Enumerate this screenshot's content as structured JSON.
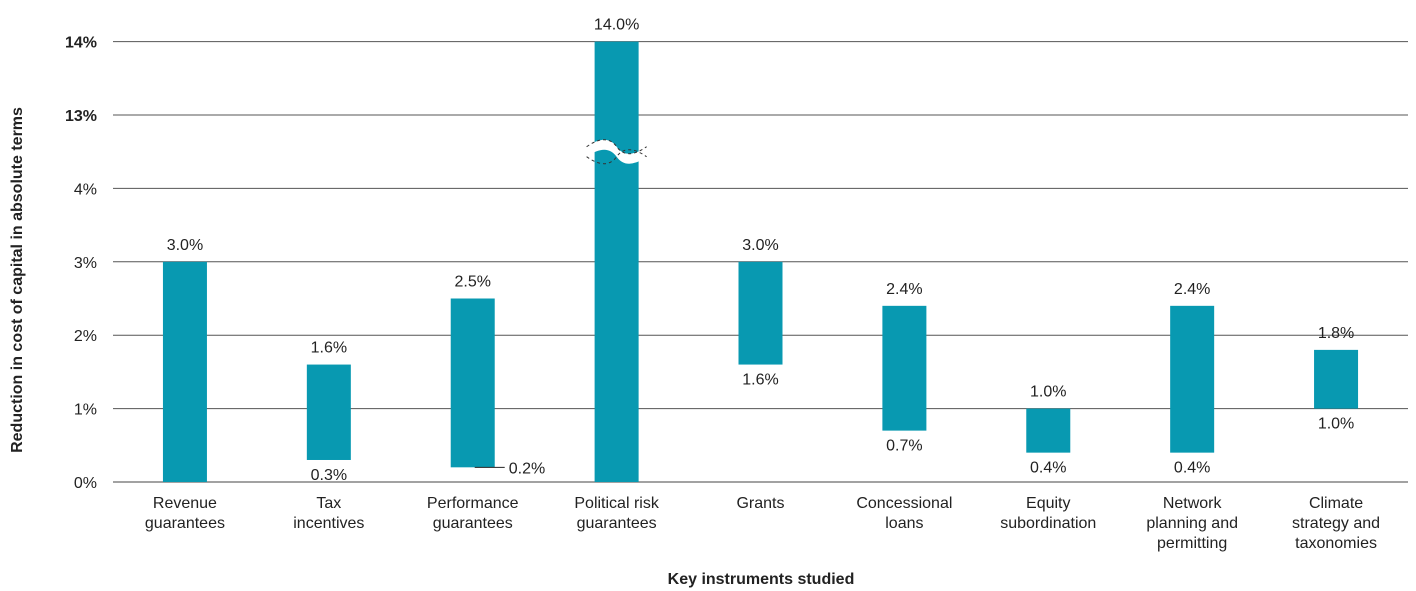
{
  "chart_data": {
    "type": "bar",
    "subtype": "floating-range",
    "xlabel": "Key instruments studied",
    "ylabel": "Reduction in cost of capital in absolute terms",
    "axis_break": {
      "between": [
        4,
        13
      ]
    },
    "y_ticks": [
      {
        "value": 0,
        "label": "0%",
        "bold": false
      },
      {
        "value": 1,
        "label": "1%",
        "bold": false
      },
      {
        "value": 2,
        "label": "2%",
        "bold": false
      },
      {
        "value": 3,
        "label": "3%",
        "bold": false
      },
      {
        "value": 4,
        "label": "4%",
        "bold": false
      },
      {
        "value": 13,
        "label": "13%",
        "bold": true
      },
      {
        "value": 14,
        "label": "14%",
        "bold": true
      }
    ],
    "grid": true,
    "bar_color": "#0899b1",
    "categories": [
      {
        "lines": [
          "Revenue",
          "guarantees"
        ],
        "low": 0,
        "high": 3.0,
        "high_label": "3.0%",
        "low_label": ""
      },
      {
        "lines": [
          "Tax",
          "incentives"
        ],
        "low": 0.3,
        "high": 1.6,
        "high_label": "1.6%",
        "low_label": "0.3%"
      },
      {
        "lines": [
          "Performance",
          "guarantees"
        ],
        "low": 0.2,
        "high": 2.5,
        "high_label": "2.5%",
        "low_label": "0.2%",
        "low_label_side": "right"
      },
      {
        "lines": [
          "Political risk",
          "guarantees"
        ],
        "low": 0,
        "high": 14.0,
        "high_label": "14.0%",
        "low_label": "",
        "broken": true
      },
      {
        "lines": [
          "Grants"
        ],
        "low": 1.6,
        "high": 3.0,
        "high_label": "3.0%",
        "low_label": "1.6%"
      },
      {
        "lines": [
          "Concessional",
          "loans"
        ],
        "low": 0.7,
        "high": 2.4,
        "high_label": "2.4%",
        "low_label": "0.7%"
      },
      {
        "lines": [
          "Equity",
          "subordination"
        ],
        "low": 0.4,
        "high": 1.0,
        "high_label": "1.0%",
        "low_label": "0.4%"
      },
      {
        "lines": [
          "Network",
          "planning and",
          "permitting"
        ],
        "low": 0.4,
        "high": 2.4,
        "high_label": "2.4%",
        "low_label": "0.4%"
      },
      {
        "lines": [
          "Climate",
          "strategy and",
          "taxonomies"
        ],
        "low": 1.0,
        "high": 1.8,
        "high_label": "1.8%",
        "low_label": "1.0%"
      }
    ]
  }
}
